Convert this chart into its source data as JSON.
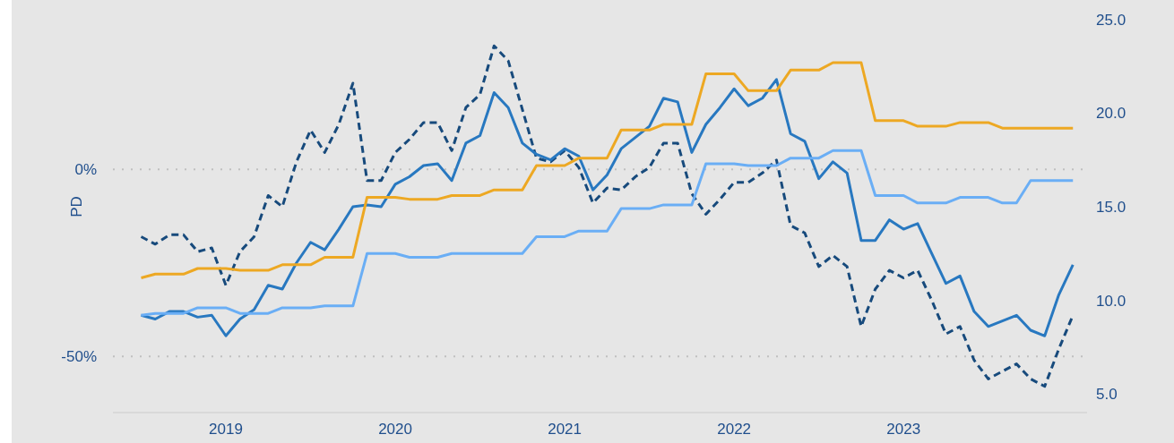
{
  "chart_data": {
    "type": "line",
    "ylabel": "PD",
    "x": [
      "2018-07",
      "2018-08",
      "2018-09",
      "2018-10",
      "2018-11",
      "2018-12",
      "2019-01",
      "2019-02",
      "2019-03",
      "2019-04",
      "2019-05",
      "2019-06",
      "2019-07",
      "2019-08",
      "2019-09",
      "2019-10",
      "2019-11",
      "2019-12",
      "2020-01",
      "2020-02",
      "2020-03",
      "2020-04",
      "2020-05",
      "2020-06",
      "2020-07",
      "2020-08",
      "2020-09",
      "2020-10",
      "2020-11",
      "2020-12",
      "2021-01",
      "2021-02",
      "2021-03",
      "2021-04",
      "2021-05",
      "2021-06",
      "2021-07",
      "2021-08",
      "2021-09",
      "2021-10",
      "2021-11",
      "2021-12",
      "2022-01",
      "2022-02",
      "2022-03",
      "2022-04",
      "2022-05",
      "2022-06",
      "2022-07",
      "2022-08",
      "2022-09",
      "2022-10",
      "2022-11",
      "2022-12",
      "2023-01",
      "2023-02",
      "2023-03",
      "2023-04",
      "2023-05",
      "2023-06",
      "2023-07",
      "2023-08",
      "2023-09",
      "2023-10",
      "2023-11",
      "2023-12",
      "2024-01"
    ],
    "series": [
      {
        "color": "#174a7c",
        "line_style": "dashed",
        "values": [
          -18,
          -20,
          -17.5,
          -17.5,
          -22,
          -21,
          -31,
          -22,
          -18,
          -7,
          -10,
          2,
          10.5,
          4.5,
          12,
          23,
          -3,
          -3,
          4.5,
          8,
          12.5,
          12.5,
          5,
          16.5,
          20,
          33,
          29,
          16,
          3,
          2,
          5,
          0.5,
          -9,
          -5,
          -5.5,
          -2,
          0.5,
          7,
          7,
          -6.5,
          -12,
          -8,
          -3.5,
          -3.5,
          -1,
          2.5,
          -15,
          -17,
          -26,
          -23,
          -26,
          -42,
          -32,
          -27,
          -29,
          -27,
          -35,
          -44,
          -42,
          -51,
          -56,
          -54,
          -52,
          -56,
          -58,
          -48,
          -39
        ]
      },
      {
        "color": "#2878c0",
        "line_style": "solid",
        "values": [
          -39,
          -40,
          -38,
          -38,
          -39.5,
          -39,
          -44.5,
          -40,
          -37.5,
          -31,
          -32,
          -25,
          -19.5,
          -21.5,
          -16,
          -10,
          -9.5,
          -10,
          -4,
          -2,
          1,
          1.5,
          -3,
          7,
          9,
          20.5,
          16.5,
          7,
          4,
          2.5,
          5.5,
          3.5,
          -5.5,
          -1.5,
          5.5,
          8.5,
          11.5,
          19,
          18,
          4.5,
          12,
          16.5,
          21.5,
          17,
          19,
          24,
          9.5,
          7.5,
          -2.5,
          2,
          -1,
          -19,
          -19,
          -13.5,
          -16,
          -14.5,
          -22.5,
          -30.5,
          -28.5,
          -38,
          -42,
          -40.5,
          -39,
          -43,
          -44.5,
          -33.5,
          -25.5
        ]
      },
      {
        "color": "#eda823",
        "line_style": "solid",
        "axis": "y2",
        "values": [
          11.2,
          11.4,
          11.4,
          11.4,
          11.7,
          11.7,
          11.7,
          11.6,
          11.6,
          11.6,
          11.9,
          11.9,
          11.9,
          12.3,
          12.3,
          12.3,
          15.5,
          15.5,
          15.5,
          15.4,
          15.4,
          15.4,
          15.6,
          15.6,
          15.6,
          15.9,
          15.9,
          15.9,
          17.2,
          17.2,
          17.2,
          17.6,
          17.6,
          17.6,
          19.1,
          19.1,
          19.1,
          19.4,
          19.4,
          19.4,
          22.1,
          22.1,
          22.1,
          21.2,
          21.2,
          21.2,
          22.3,
          22.3,
          22.3,
          22.7,
          22.7,
          22.7,
          19.6,
          19.6,
          19.6,
          19.3,
          19.3,
          19.3,
          19.5,
          19.5,
          19.5,
          19.2,
          19.2,
          19.2,
          19.2,
          19.2,
          19.2
        ]
      },
      {
        "color": "#6aaef5",
        "line_style": "solid",
        "axis": "y2",
        "values": [
          9.2,
          9.3,
          9.3,
          9.3,
          9.6,
          9.6,
          9.6,
          9.3,
          9.3,
          9.3,
          9.6,
          9.6,
          9.6,
          9.7,
          9.7,
          9.7,
          12.5,
          12.5,
          12.5,
          12.3,
          12.3,
          12.3,
          12.5,
          12.5,
          12.5,
          12.5,
          12.5,
          12.5,
          13.4,
          13.4,
          13.4,
          13.7,
          13.7,
          13.7,
          14.9,
          14.9,
          14.9,
          15.1,
          15.1,
          15.1,
          17.3,
          17.3,
          17.3,
          17.2,
          17.2,
          17.2,
          17.6,
          17.6,
          17.6,
          18,
          18,
          18,
          15.6,
          15.6,
          15.6,
          15.2,
          15.2,
          15.2,
          15.5,
          15.5,
          15.5,
          15.2,
          15.2,
          16.4,
          16.4,
          16.4,
          16.4
        ]
      }
    ],
    "xlim": [
      "2018-05",
      "2024-02"
    ],
    "xticks": [
      {
        "value": "2019-01",
        "label": "2019"
      },
      {
        "value": "2020-01",
        "label": "2020"
      },
      {
        "value": "2021-01",
        "label": "2021"
      },
      {
        "value": "2022-01",
        "label": "2022"
      },
      {
        "value": "2023-01",
        "label": "2023"
      }
    ],
    "ylim": [
      -65,
      45
    ],
    "yticks": [
      {
        "value": -50,
        "label": "-50%"
      },
      {
        "value": 0,
        "label": "0%"
      }
    ],
    "y2lim": [
      4,
      26
    ],
    "y2ticks": [
      {
        "value": 5,
        "label": "5.0"
      },
      {
        "value": 10,
        "label": "10.0"
      },
      {
        "value": 15,
        "label": "15.0"
      },
      {
        "value": 20,
        "label": "20.0"
      },
      {
        "value": 25,
        "label": "25.0"
      }
    ],
    "grid": "y",
    "legend": false,
    "marker": "none"
  }
}
